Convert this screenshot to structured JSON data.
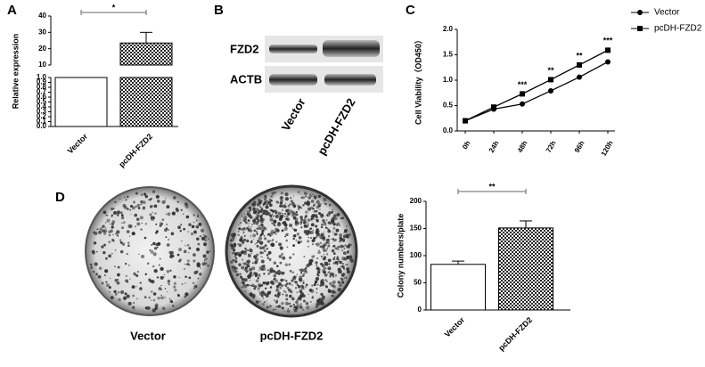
{
  "panel_letters": [
    "A",
    "B",
    "C",
    "D"
  ],
  "blot": {
    "rows": [
      "FZD2",
      "ACTB"
    ],
    "lanes": [
      "Vector",
      "pcDH-FZD2"
    ]
  },
  "plates": {
    "labels": [
      "Vector",
      "pcDH-FZD2"
    ]
  },
  "chart_data": [
    {
      "type": "bar",
      "y_label": "Relative expression",
      "categories": [
        "Vector",
        "pcDH-FZD2"
      ],
      "values": [
        1,
        23.5
      ],
      "errors": [
        null,
        6.5
      ],
      "colors": [
        "#ffffff",
        "#222222"
      ],
      "fills": [
        "solid",
        "checker"
      ],
      "ylim": [
        0,
        40
      ],
      "y_break": [
        1,
        10
      ],
      "yticks": [
        {
          "value": 0,
          "label": "0.0"
        },
        0.1,
        0.2,
        0.3,
        0.4,
        0.5,
        0.6,
        0.7,
        0.8,
        0.9,
        {
          "value": 1,
          "label": "1.0"
        },
        10,
        20,
        30,
        40
      ],
      "significance": {
        "label": "*",
        "between": [
          0,
          1
        ]
      }
    },
    {
      "type": "line",
      "y_label": "Cell Viability（OD450）",
      "categories": [
        "0h",
        "24h",
        "48h",
        "72h",
        "96h",
        "120h"
      ],
      "series": [
        {
          "name": "Vector",
          "color": "#000000",
          "marker": "circle",
          "values": [
            0.2,
            0.43,
            0.53,
            0.79,
            1.06,
            1.36
          ]
        },
        {
          "name": "pcDH-FZD2",
          "color": "#000000",
          "marker": "square",
          "values": [
            0.2,
            0.47,
            0.73,
            1.01,
            1.3,
            1.59
          ]
        }
      ],
      "annotations": [
        null,
        null,
        "***",
        "**",
        "**",
        "***"
      ],
      "ylim": [
        0,
        2
      ],
      "yticks": [
        {
          "value": 0,
          "label": "0.0"
        },
        0.5,
        {
          "value": 1,
          "label": "1.0"
        },
        1.5,
        {
          "value": 2,
          "label": "2.0"
        }
      ],
      "legend": "right"
    },
    {
      "type": "bar",
      "y_label": "Colony numbers/plate",
      "categories": [
        "Vector",
        "pcDH-FZD2"
      ],
      "values": [
        84,
        151
      ],
      "errors": [
        6,
        13
      ],
      "colors": [
        "#ffffff",
        "#222222"
      ],
      "fills": [
        "solid",
        "checker"
      ],
      "ylim": [
        0,
        200
      ],
      "yticks": [
        0,
        50,
        100,
        150,
        200
      ],
      "significance": {
        "label": "**",
        "between": [
          0,
          1
        ]
      }
    }
  ]
}
